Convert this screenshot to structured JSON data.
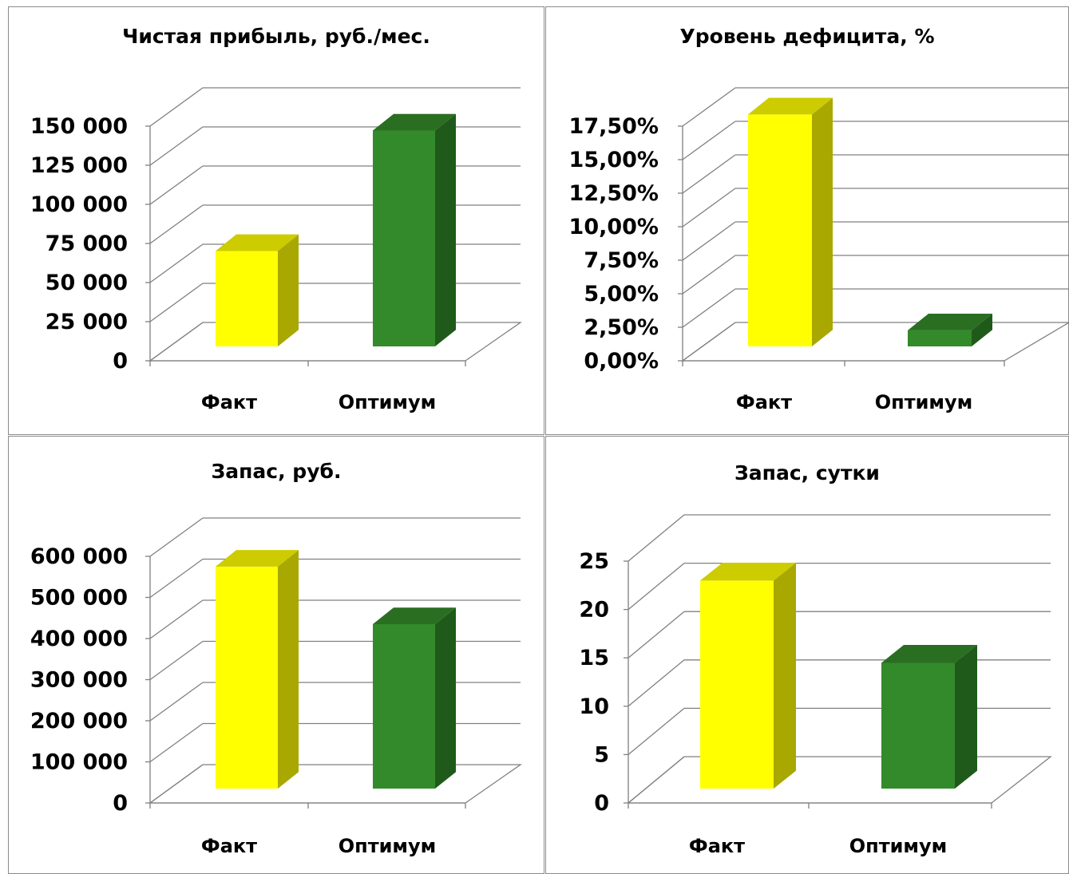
{
  "colors": {
    "fact_front": "#ffff00",
    "fact_side": "#a8a800",
    "fact_top": "#cccc00",
    "opt_front": "#338a2a",
    "opt_side": "#1f5a1a",
    "opt_top": "#2a6e22",
    "grid": "#808080",
    "axis": "#808080"
  },
  "chart_data": [
    {
      "type": "bar",
      "title": "Чистая прибыль, руб./мес.",
      "categories": [
        "Факт",
        "Оптимум"
      ],
      "values": [
        61000,
        138000
      ],
      "yticks": [
        "0",
        "25 000",
        "50 000",
        "75 000",
        "100 000",
        "125 000",
        "150 000"
      ],
      "ylim": [
        0,
        150000
      ],
      "grid": true,
      "legend": "none"
    },
    {
      "type": "bar",
      "title": "Уровень дефицита, %",
      "categories": [
        "Факт",
        "Оптимум"
      ],
      "values": [
        0.173,
        0.012
      ],
      "yticks": [
        "0,00%",
        "2,50%",
        "5,00%",
        "7,50%",
        "10,00%",
        "12,50%",
        "15,00%",
        "17,50%"
      ],
      "ylim": [
        0,
        0.175
      ],
      "grid": true,
      "legend": "none"
    },
    {
      "type": "bar",
      "title": "Запас, руб.",
      "categories": [
        "Факт",
        "Оптимум"
      ],
      "values": [
        540000,
        400000
      ],
      "yticks": [
        "0",
        "100 000",
        "200 000",
        "300 000",
        "400 000",
        "500 000",
        "600 000"
      ],
      "ylim": [
        0,
        600000
      ],
      "grid": true,
      "legend": "none"
    },
    {
      "type": "bar",
      "title": "Запас, сутки",
      "categories": [
        "Факт",
        "Оптимум"
      ],
      "values": [
        21.5,
        13
      ],
      "yticks": [
        "0",
        "5",
        "10",
        "15",
        "20",
        "25"
      ],
      "ylim": [
        0,
        25
      ],
      "grid": true,
      "legend": "none"
    }
  ]
}
